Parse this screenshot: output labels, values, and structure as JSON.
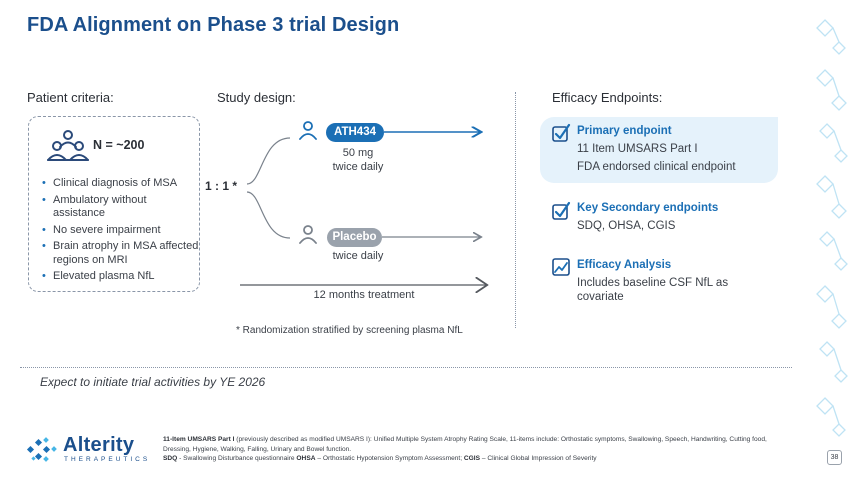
{
  "slide": {
    "title": "FDA Alignment on Phase 3 trial Design",
    "page_number": "38"
  },
  "patient": {
    "heading": "Patient criteria:",
    "n_label": "N = ~200",
    "icon": "people-group-icon",
    "criteria": [
      "Clinical diagnosis of MSA",
      "Ambulatory without assistance",
      "No severe impairment",
      "Brain atrophy in MSA affected regions on MRI",
      "Elevated plasma NfL"
    ]
  },
  "study": {
    "heading": "Study design:",
    "ratio": "1 : 1 *",
    "arm_drug": {
      "label": "ATH434",
      "dose_line1": "50 mg",
      "dose_line2": "twice daily",
      "color": "#1b6fb5"
    },
    "arm_placebo": {
      "label": "Placebo",
      "dose_line1": "twice daily",
      "color": "#9aa2ac"
    },
    "duration": "12 months treatment",
    "randomization_note": "* Randomization stratified by screening plasma NfL"
  },
  "endpoints": {
    "heading": "Efficacy Endpoints:",
    "primary": {
      "title": "Primary endpoint",
      "line1": "11 Item UMSARS Part I",
      "line2": "FDA endorsed clinical endpoint",
      "icon": "checkmark-icon"
    },
    "secondary": {
      "title": "Key Secondary endpoints",
      "line1": "SDQ,  OHSA,  CGIS",
      "icon": "checkmark-icon"
    },
    "analysis": {
      "title": "Efficacy Analysis",
      "line1": "Includes baseline CSF NfL as",
      "line2": "covariate",
      "icon": "chart-icon"
    }
  },
  "expectation": "Expect to initiate trial activities by YE 2026",
  "footer": {
    "brand": "Alterity",
    "brand_sub": "THERAPEUTICS",
    "fine_1_bold": "11-Item UMSARS Part I",
    "fine_1": " (previously described as modified UMSARS I): Unified Multiple System Atrophy Rating Scale, 11-items include: Orthostatic symptoms, Swallowing, Speech, Handwriting, Cutting food, Dressing, Hygiene, Walking, Falling, Urinary and Bowel function.",
    "fine_2_bold_a": "SDQ",
    "fine_2_a": " - Swallowing Disturbance questionnaire ",
    "fine_2_bold_b": "OHSA",
    "fine_2_b": " – Orthostatic Hypotension Symptom Assessment; ",
    "fine_2_bold_c": "CGIS",
    "fine_2_c": " – Clinical Global Impression of Severity"
  },
  "colors": {
    "title": "#1b4f8c",
    "accent": "#1b6fb5",
    "muted": "#9aa2ac",
    "panel": "#e5f2fb"
  }
}
